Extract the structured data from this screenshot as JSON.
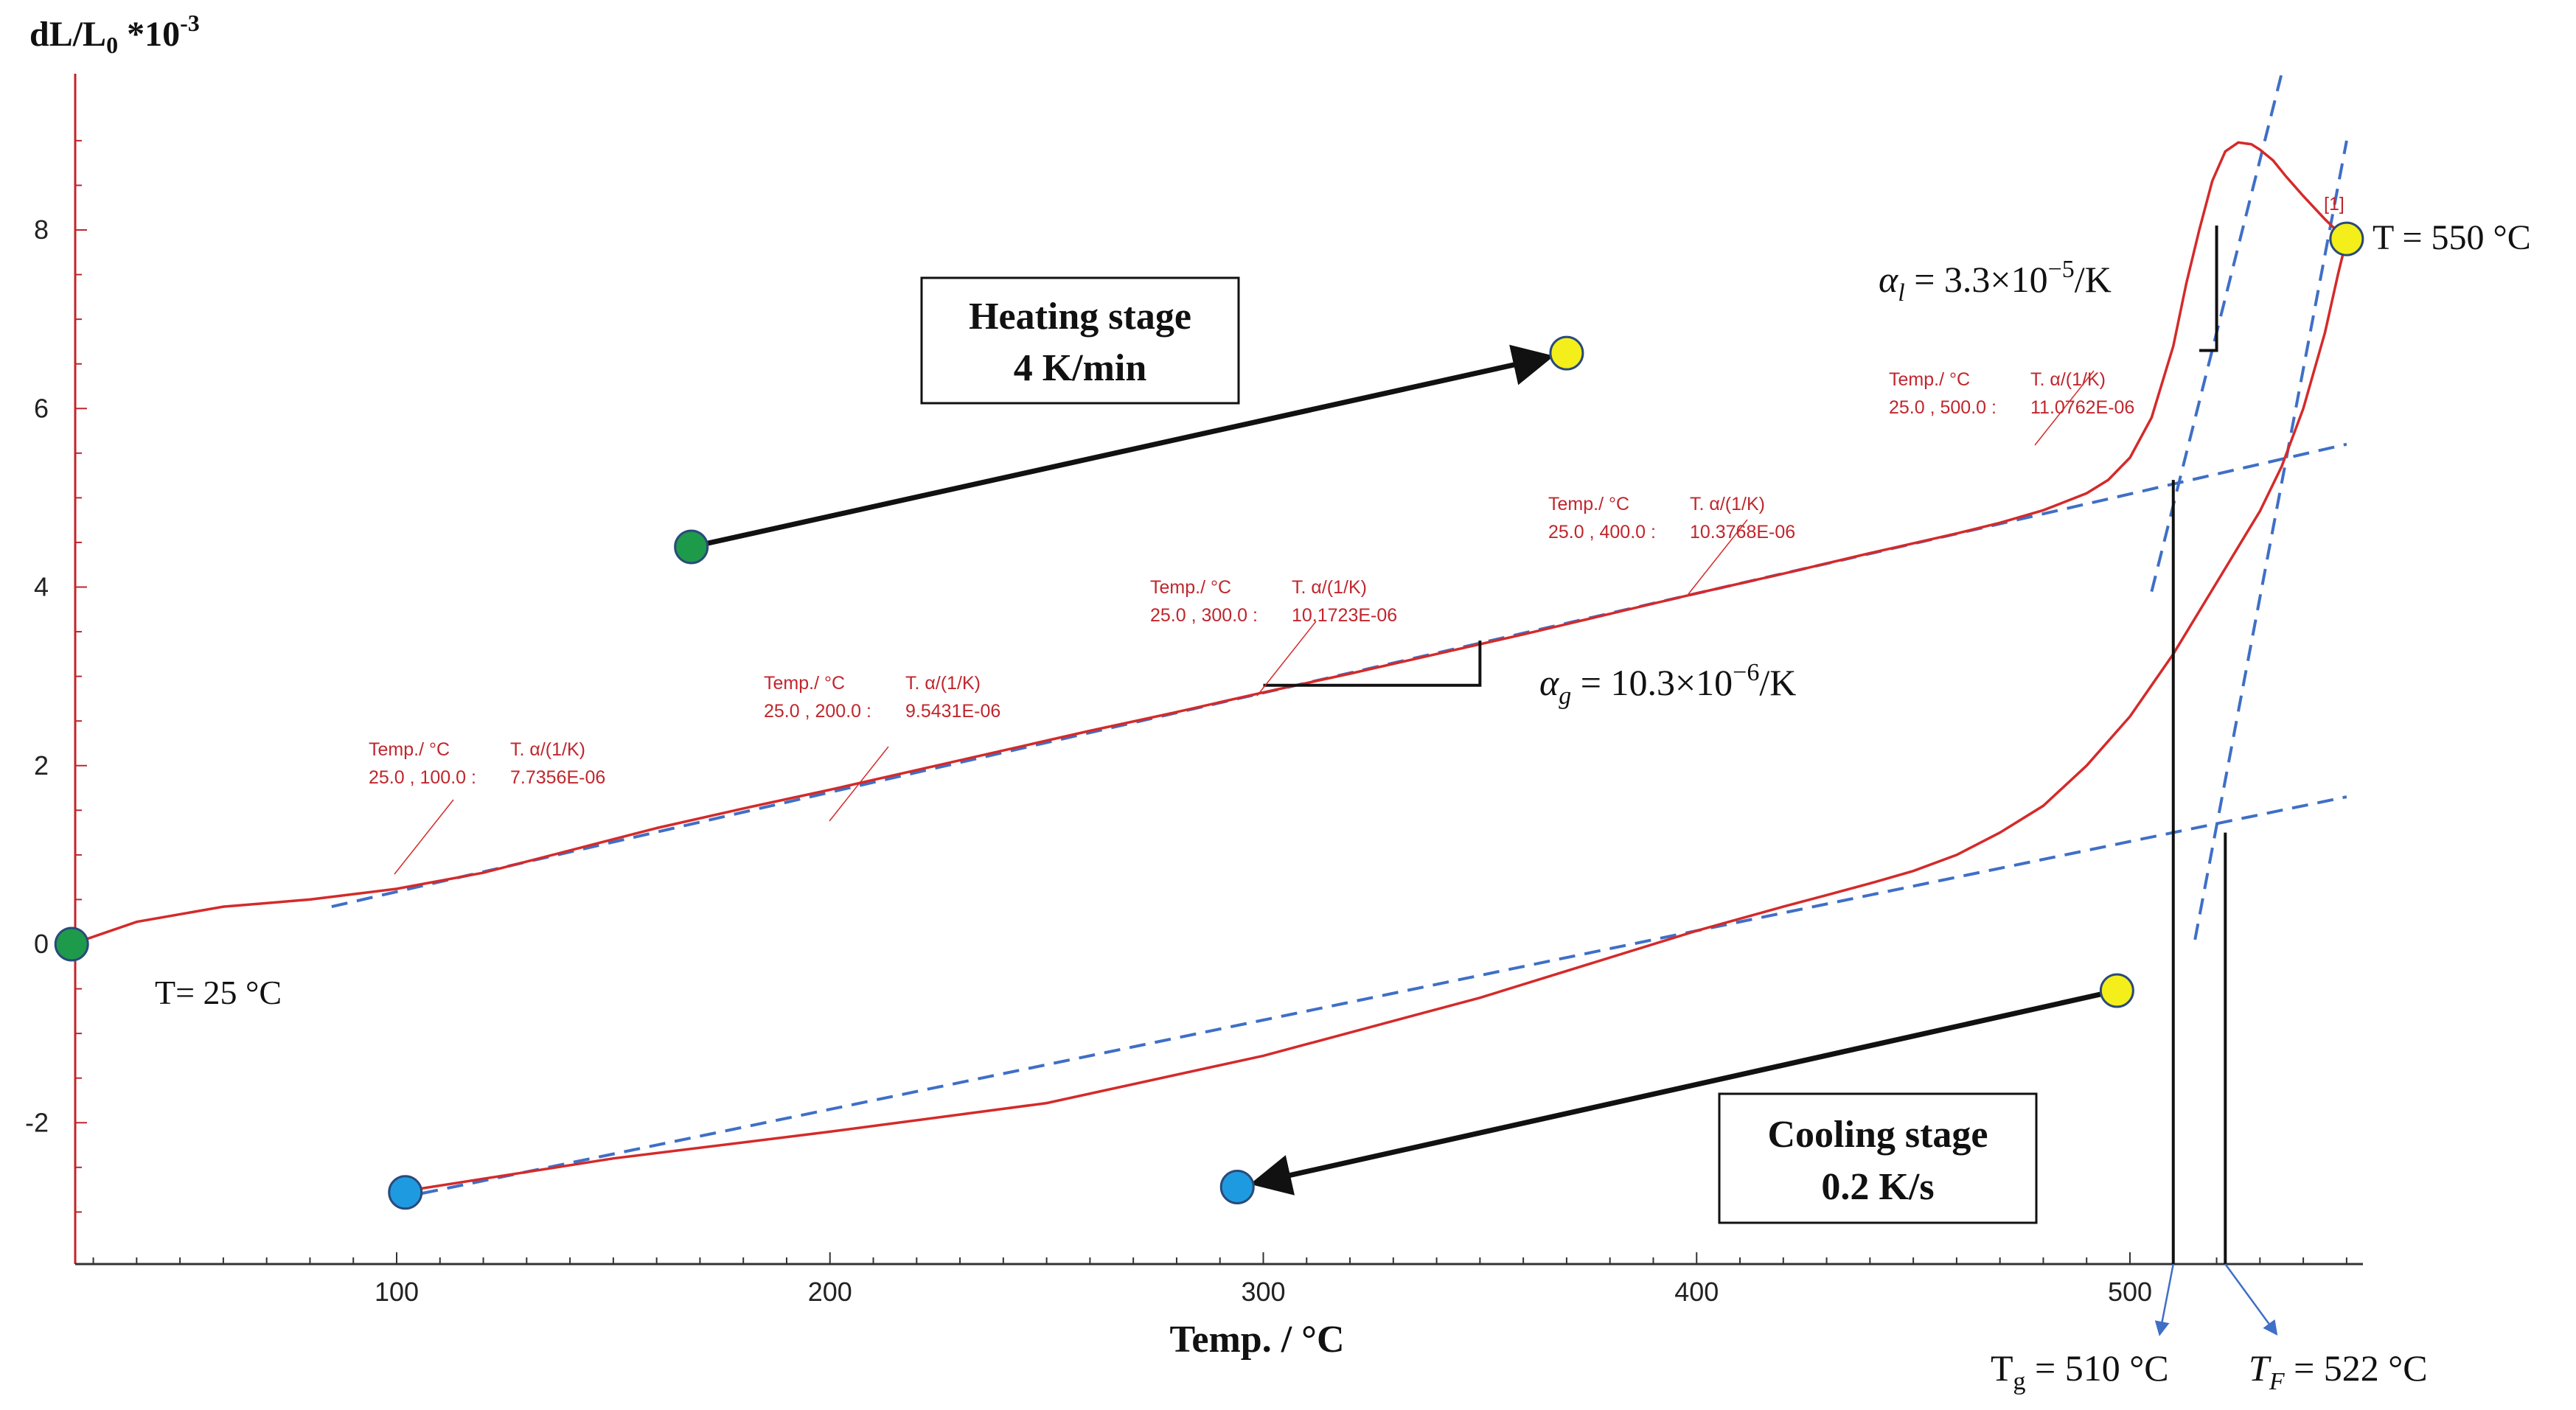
{
  "chart_data": {
    "type": "line",
    "ylabel_main": "dL/L",
    "ylabel_sub": "0",
    "ylabel_tail": " *10",
    "ylabel_sup": "-3",
    "xlabel": "Temp. / °C",
    "xlim": [
      25,
      555
    ],
    "ylim": [
      -3.5,
      9.8
    ],
    "xticks": [
      100,
      200,
      300,
      400,
      500
    ],
    "yticks": [
      -2,
      0,
      2,
      4,
      6,
      8
    ],
    "colors": {
      "curve": "#d42a2a",
      "fit": "#3f6fc6",
      "axis": "#c0262d",
      "green": "#1e9a4b",
      "yellow": "#f4ee1b",
      "blue": "#1e9be0",
      "arrow": "#111111"
    },
    "series": [
      {
        "name": "Heating curve (measured)",
        "x": [
          25,
          40,
          60,
          80,
          100,
          120,
          140,
          160,
          180,
          200,
          220,
          240,
          260,
          280,
          300,
          320,
          340,
          360,
          380,
          400,
          420,
          440,
          460,
          470,
          480,
          490,
          495,
          500,
          505,
          510,
          513,
          516,
          519,
          522,
          525,
          528,
          530,
          533,
          536,
          540,
          545,
          548,
          550
        ],
        "y": [
          0,
          0.25,
          0.42,
          0.5,
          0.62,
          0.8,
          1.05,
          1.3,
          1.52,
          1.73,
          1.95,
          2.17,
          2.39,
          2.6,
          2.82,
          3.03,
          3.25,
          3.47,
          3.7,
          3.93,
          4.15,
          4.38,
          4.6,
          4.72,
          4.86,
          5.05,
          5.2,
          5.45,
          5.9,
          6.7,
          7.4,
          8.0,
          8.55,
          8.88,
          8.98,
          8.96,
          8.9,
          8.78,
          8.6,
          8.38,
          8.12,
          7.98,
          7.9
        ]
      },
      {
        "name": "Cooling curve (measured)",
        "x": [
          550,
          548,
          545,
          540,
          535,
          530,
          520,
          510,
          500,
          490,
          480,
          470,
          460,
          450,
          440,
          430,
          420,
          400,
          350,
          300,
          250,
          200,
          150,
          100
        ],
        "y": [
          7.9,
          7.5,
          6.85,
          6.0,
          5.35,
          4.85,
          4.05,
          3.25,
          2.55,
          2.0,
          1.55,
          1.25,
          1.0,
          0.82,
          0.68,
          0.55,
          0.42,
          0.15,
          -0.6,
          -1.25,
          -1.78,
          -2.1,
          -2.4,
          -2.78
        ]
      },
      {
        "name": "Glassy fit (heating)",
        "x": [
          85,
          550
        ],
        "y": [
          0.42,
          5.6
        ]
      },
      {
        "name": "Supercooled liquid fit",
        "x": [
          505,
          535
        ],
        "y": [
          3.95,
          9.75
        ]
      },
      {
        "name": "Glassy fit (cooling)",
        "x": [
          100,
          550
        ],
        "y": [
          -2.85,
          1.65
        ]
      },
      {
        "name": "Steep fit (cooling)",
        "x": [
          515,
          550
        ],
        "y": [
          0.05,
          9.0
        ]
      }
    ],
    "points": [
      {
        "name": "start",
        "x": 25,
        "y": 0,
        "color": "green"
      },
      {
        "name": "heating-arrow-start",
        "x": 168,
        "y": 4.45,
        "color": "green"
      },
      {
        "name": "heating-arrow-end",
        "x": 370,
        "y": 6.62,
        "color": "yellow"
      },
      {
        "name": "max-temp",
        "x": 550,
        "y": 7.9,
        "color": "yellow"
      },
      {
        "name": "cooling-arrow-start",
        "x": 497,
        "y": -0.52,
        "color": "yellow"
      },
      {
        "name": "cooling-arrow-end",
        "x": 294,
        "y": -2.72,
        "color": "blue"
      },
      {
        "name": "cooling-end",
        "x": 102,
        "y": -2.78,
        "color": "blue"
      }
    ],
    "measurements": [
      {
        "h1": "Temp./ °C",
        "h2": "T. α/(1/K)",
        "range": "25.0 , 100.0 :",
        "value": "7.7356E-06",
        "at_x": 100
      },
      {
        "h1": "Temp./ °C",
        "h2": "T. α/(1/K)",
        "range": "25.0 , 200.0 :",
        "value": "9.5431E-06",
        "at_x": 200
      },
      {
        "h1": "Temp./ °C",
        "h2": "T. α/(1/K)",
        "range": "25.0 , 300.0 :",
        "value": "10.1723E-06",
        "at_x": 300
      },
      {
        "h1": "Temp./ °C",
        "h2": "T. α/(1/K)",
        "range": "25.0 , 400.0 :",
        "value": "10.3768E-06",
        "at_x": 400
      },
      {
        "h1": "Temp./ °C",
        "h2": "T. α/(1/K)",
        "range": "25.0 , 500.0 :",
        "value": "11.0762E-06",
        "at_x": 500
      }
    ],
    "boxes": {
      "heating_line1": "Heating stage",
      "heating_line2": "4 K/min",
      "cooling_line1": "Cooling stage",
      "cooling_line2": "0.2 K/s"
    },
    "labels": {
      "t_start": "T= 25 °C",
      "t_max": "T = 550 °C",
      "marker_m1": "[1]",
      "alpha_g_sym": "α",
      "alpha_g_sub": "g",
      "alpha_g_eq": " = 10.3×10",
      "alpha_g_exp": "−6",
      "alpha_g_unit": "/K",
      "alpha_l_sym": "α",
      "alpha_l_sub": "l",
      "alpha_l_eq": " = 3.3×10",
      "alpha_l_exp": "−5",
      "alpha_l_unit": "/K",
      "tg_sym": "T",
      "tg_sub": "g",
      "tg_val": " = 510 °C",
      "tf_sym": "T",
      "tf_sub": "F",
      "tf_val": " = 522 °C"
    },
    "tg_x": 510,
    "tf_x": 522
  }
}
